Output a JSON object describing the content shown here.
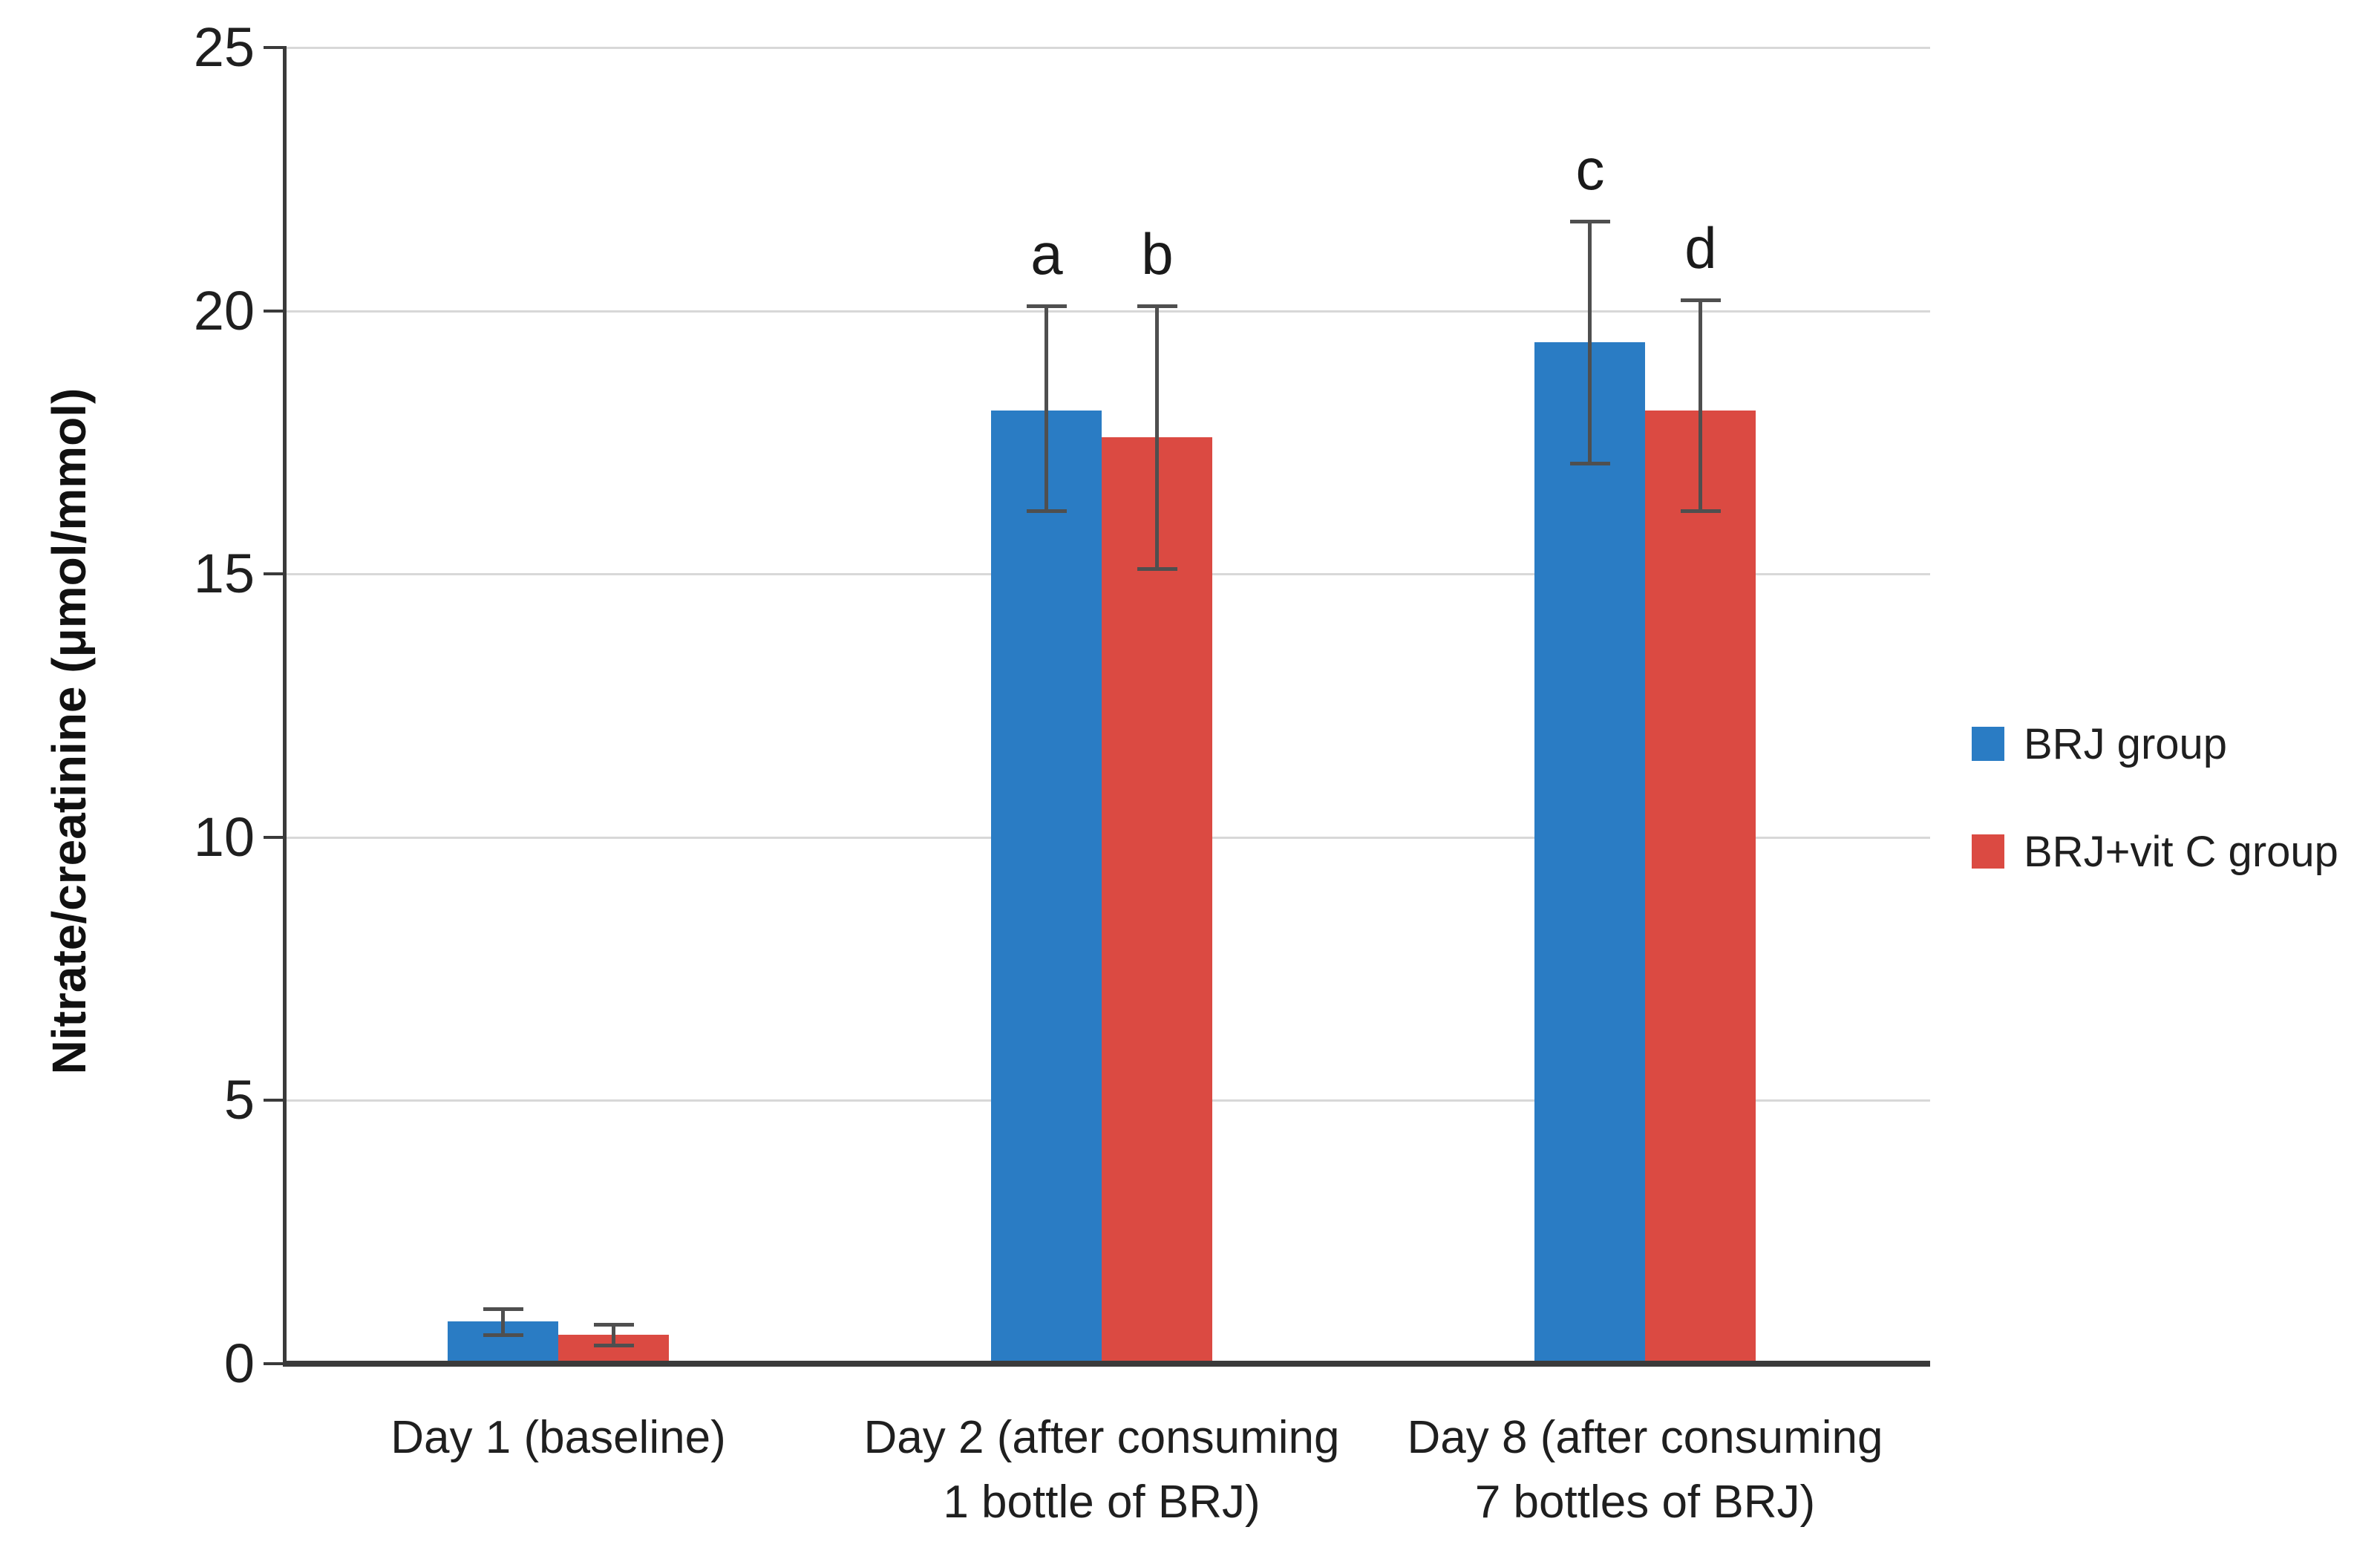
{
  "chart_data": {
    "type": "bar",
    "title": "",
    "xlabel": "",
    "ylabel": "Nitrate/creatinine (μmol/mmol)",
    "ylim": [
      0,
      25
    ],
    "yticks": [
      0,
      5,
      10,
      15,
      20,
      25
    ],
    "grid": "horizontal-gridlines",
    "legend_position": "right-middle",
    "categories": [
      "Day 1 (baseline)",
      "Day 2 (after consuming\n1 bottle of BRJ)",
      "Day 8 (after consuming\n7 bottles of BRJ)"
    ],
    "series": [
      {
        "name": "BRJ group",
        "color": "#2A7CC4",
        "values": [
          0.8,
          18.1,
          19.4
        ],
        "error_plus": [
          0.25,
          2.0,
          2.3
        ],
        "error_minus": [
          0.25,
          1.9,
          2.3
        ],
        "sig_labels": [
          "",
          "a",
          "c"
        ]
      },
      {
        "name": "BRJ+vit C group",
        "color": "#DB4A42",
        "values": [
          0.55,
          17.6,
          18.1
        ],
        "error_plus": [
          0.2,
          2.5,
          2.1
        ],
        "error_minus": [
          0.2,
          2.5,
          1.9
        ],
        "sig_labels": [
          "",
          "b",
          "d"
        ]
      }
    ]
  },
  "colors": {
    "background": "#FFFFFF",
    "axis": "#3A3A3A",
    "gridline": "#D8D8D8",
    "error_bar": "#4F4F4F",
    "text": "#1F1F1F"
  }
}
